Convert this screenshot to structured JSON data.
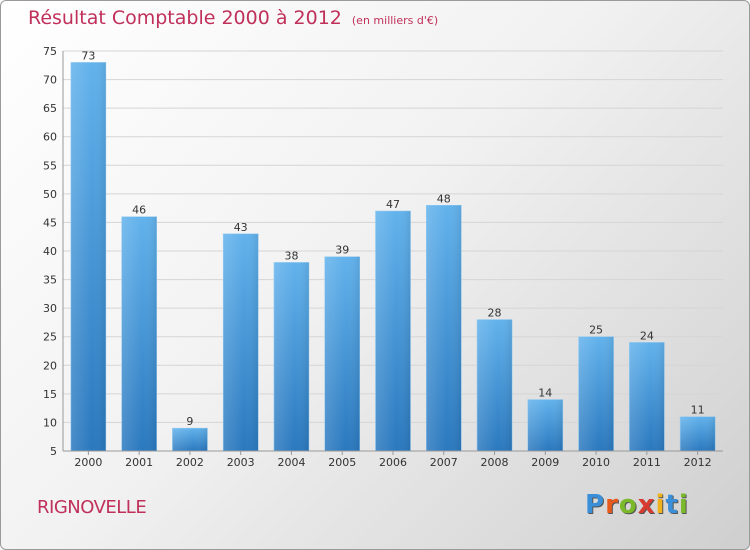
{
  "header": {
    "title": "Résultat Comptable 2000 à 2012",
    "unit_note": "(en milliers d'€)"
  },
  "commune": "RIGNOVELLE",
  "logo": {
    "text": "Proxiti",
    "colors": [
      "#3a8fd8",
      "#e85a1c",
      "#7ab929",
      "#d93a2f",
      "#f0b21a",
      "#3a8fd8",
      "#7ab929"
    ]
  },
  "colors": {
    "accent": "#c0305a",
    "bar_top": "#62b2ec",
    "bar_bottom": "#2a78be",
    "grid": "#d5d5d5"
  },
  "chart_data": {
    "type": "bar",
    "title": "Résultat Comptable 2000 à 2012",
    "subtitle": "(en milliers d'€)",
    "xlabel": "",
    "ylabel": "",
    "categories": [
      "2000",
      "2001",
      "2002",
      "2003",
      "2004",
      "2005",
      "2006",
      "2007",
      "2008",
      "2009",
      "2010",
      "2011",
      "2012"
    ],
    "values": [
      73,
      46,
      9,
      43,
      38,
      39,
      47,
      48,
      28,
      14,
      25,
      24,
      11
    ],
    "ylim": [
      5,
      75
    ],
    "yticks": [
      5,
      10,
      15,
      20,
      25,
      30,
      35,
      40,
      45,
      50,
      55,
      60,
      65,
      70,
      75
    ],
    "grid": true
  }
}
